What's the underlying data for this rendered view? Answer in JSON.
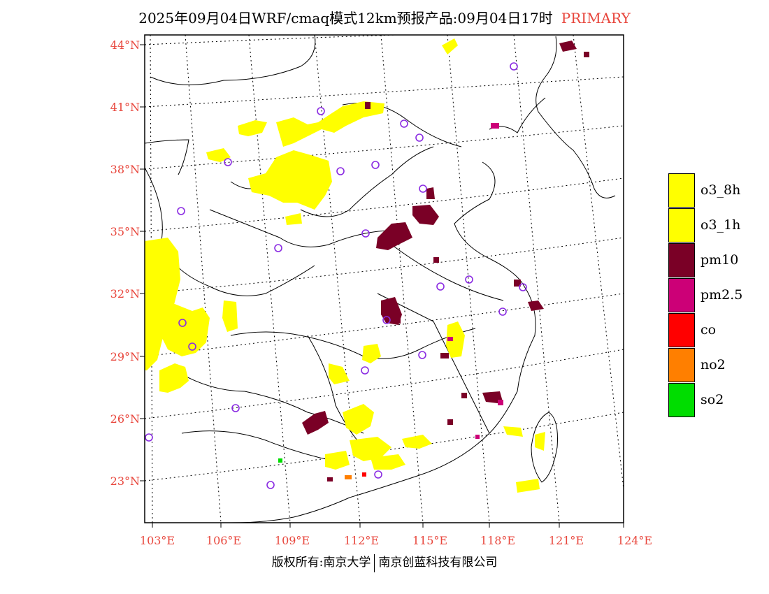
{
  "title": {
    "text": "2025年09月04日WRF/cmaq模式12km预报产品:09月04日17时",
    "tag": "PRIMARY",
    "tag_color": "#e8463c"
  },
  "axes": {
    "lat_labels": [
      "44°N",
      "41°N",
      "38°N",
      "35°N",
      "32°N",
      "29°N",
      "26°N",
      "23°N"
    ],
    "lon_labels": [
      "103°E",
      "106°E",
      "109°E",
      "112°E",
      "115°E",
      "118°E",
      "121°E",
      "124°E"
    ],
    "label_color": "#e8463c"
  },
  "legend": [
    {
      "label": "o3_8h",
      "color": "#ffff00"
    },
    {
      "label": "o3_1h",
      "color": "#ffff00"
    },
    {
      "label": "pm10",
      "color": "#7a0026"
    },
    {
      "label": "pm2.5",
      "color": "#cc0077"
    },
    {
      "label": "co",
      "color": "#ff0000"
    },
    {
      "label": "no2",
      "color": "#ff7f00"
    },
    {
      "label": "so2",
      "color": "#00dd00"
    }
  ],
  "footer": {
    "left": "版权所有:南京大学",
    "right": "南京创蓝科技有限公司"
  },
  "colors": {
    "o3": "#ffff00",
    "pm10": "#7a0026",
    "pm25": "#cc0077",
    "co": "#ff0000",
    "no2": "#ff7f00",
    "so2": "#00dd00",
    "station_marker": "#8a2be2"
  }
}
